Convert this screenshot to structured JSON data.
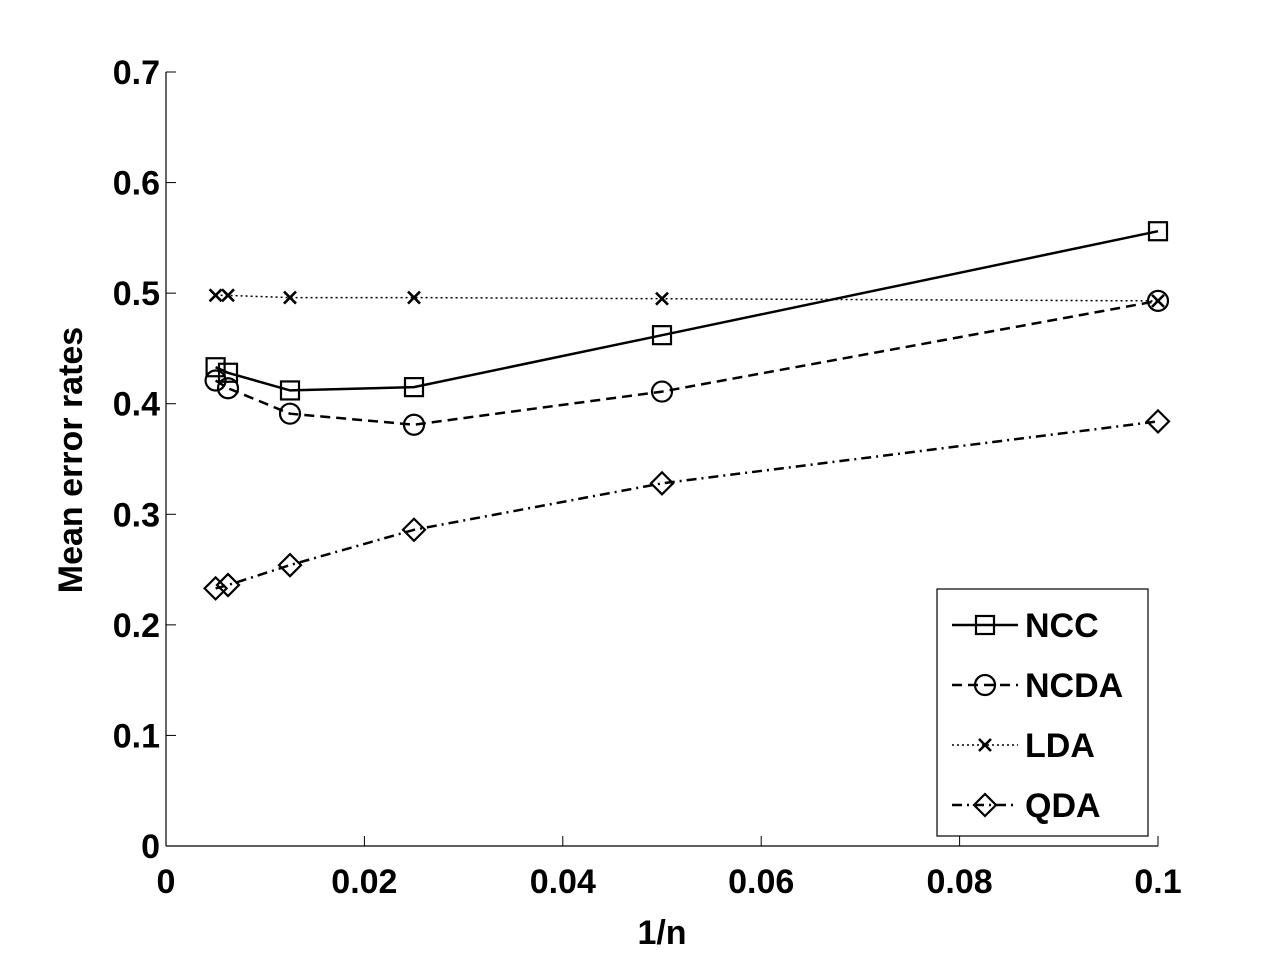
{
  "chart_data": {
    "type": "line",
    "title": "",
    "xlabel": "1/n",
    "ylabel": "Mean error rates",
    "xlim": [
      0,
      0.1
    ],
    "ylim": [
      0,
      0.7
    ],
    "xticks": [
      0,
      0.02,
      0.04,
      0.06,
      0.08,
      0.1
    ],
    "xtick_labels": [
      "0",
      "0.02",
      "0.04",
      "0.06",
      "0.08",
      "0.1"
    ],
    "yticks": [
      0,
      0.1,
      0.2,
      0.3,
      0.4,
      0.5,
      0.6,
      0.7
    ],
    "ytick_labels": [
      "0",
      "0.1",
      "0.2",
      "0.3",
      "0.4",
      "0.5",
      "0.6",
      "0.7"
    ],
    "grid": false,
    "legend_position": "bottom-right",
    "x": [
      0.005,
      0.00625,
      0.0125,
      0.025,
      0.05,
      0.1
    ],
    "series": [
      {
        "name": "NCC",
        "line": "solid",
        "marker": "square",
        "values": [
          0.433,
          0.428,
          0.412,
          0.415,
          0.462,
          0.556
        ]
      },
      {
        "name": "NCDA",
        "line": "dashed",
        "marker": "circle",
        "values": [
          0.421,
          0.414,
          0.391,
          0.381,
          0.411,
          0.493
        ]
      },
      {
        "name": "LDA",
        "line": "dotted",
        "marker": "x",
        "values": [
          0.498,
          0.498,
          0.496,
          0.496,
          0.495,
          0.493
        ]
      },
      {
        "name": "QDA",
        "line": "dashdot",
        "marker": "diamond",
        "values": [
          0.233,
          0.236,
          0.254,
          0.286,
          0.328,
          0.384
        ]
      }
    ]
  }
}
